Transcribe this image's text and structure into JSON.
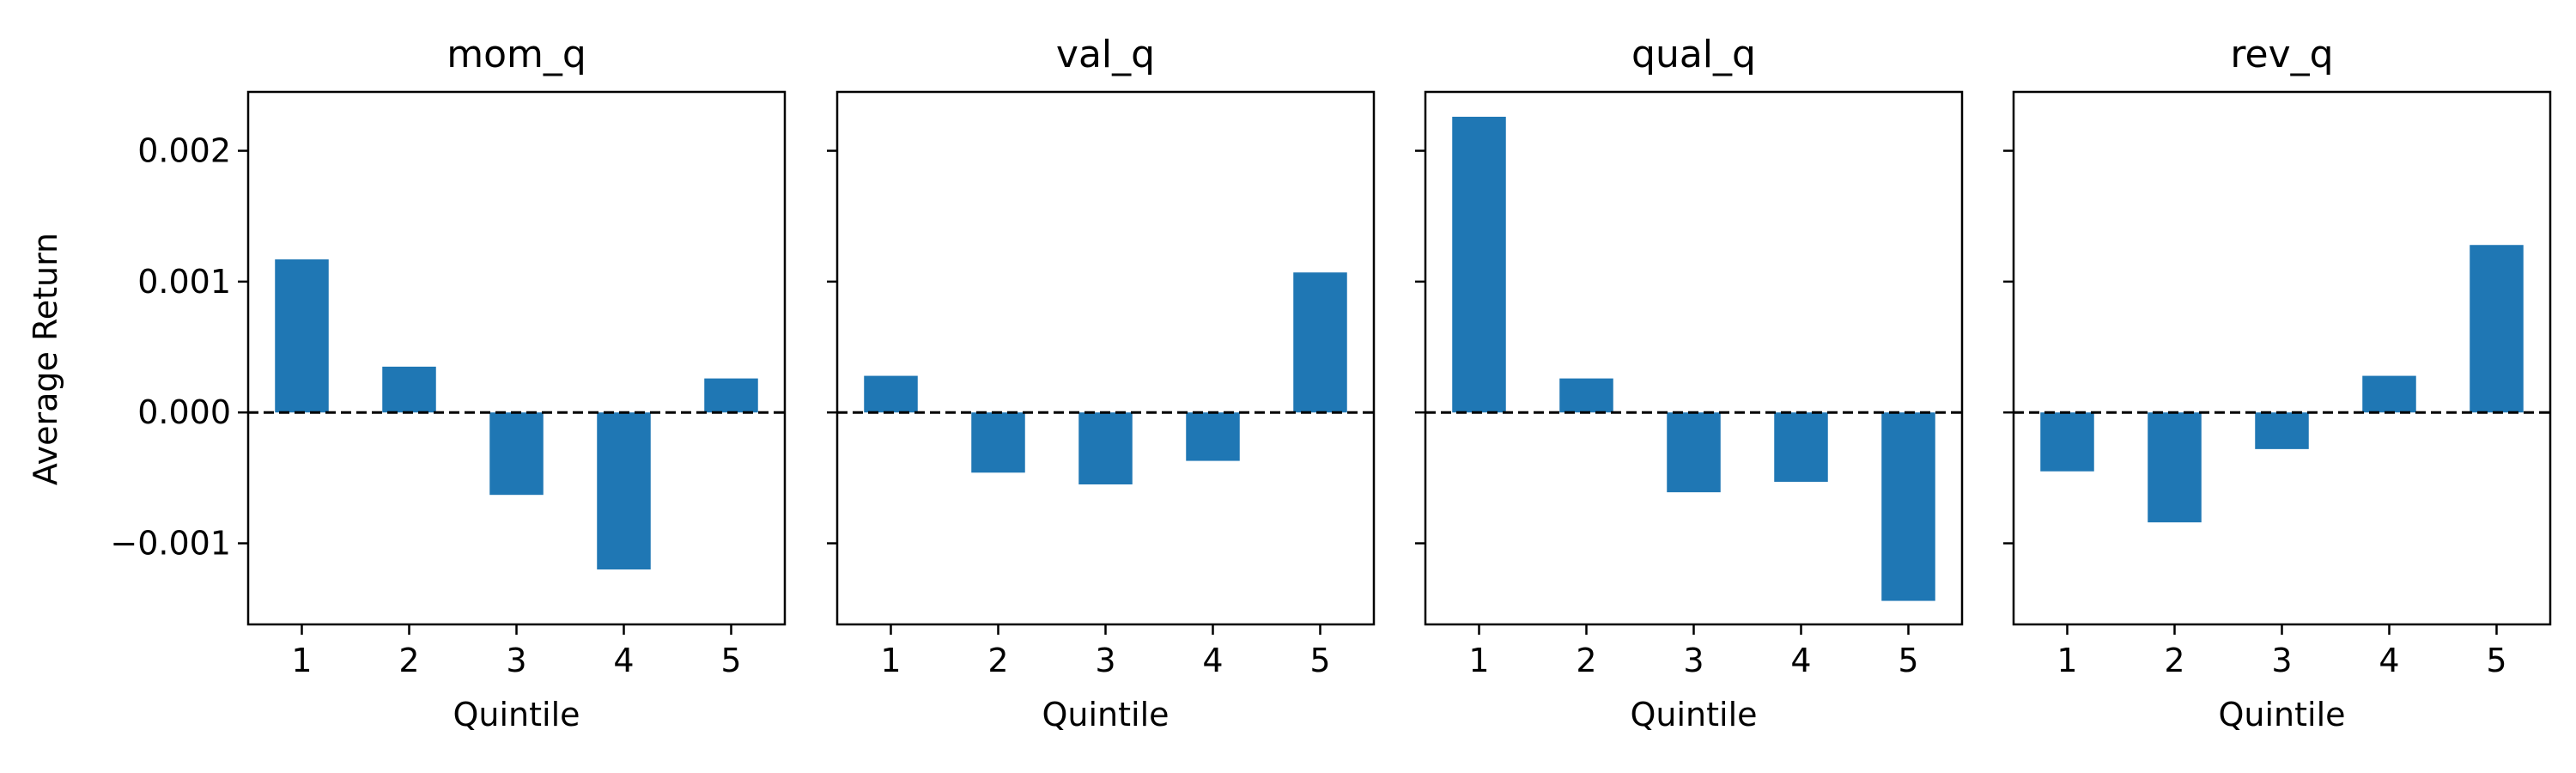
{
  "chart_data": {
    "type": "bar",
    "bar_color": "#1f77b4",
    "ylabel": "Average Return",
    "ylim": [
      -0.00162,
      0.00245
    ],
    "yticks": [
      -0.001,
      0.0,
      0.001,
      0.002
    ],
    "ytick_labels": [
      "−0.001",
      "0.000",
      "0.001",
      "0.002"
    ],
    "zero_line": "dashed",
    "subplots": [
      {
        "title": "mom_q",
        "xlabel": "Quintile",
        "categories": [
          "1",
          "2",
          "3",
          "4",
          "5"
        ],
        "values": [
          0.00117,
          0.00035,
          -0.00063,
          -0.0012,
          0.00026
        ]
      },
      {
        "title": "val_q",
        "xlabel": "Quintile",
        "categories": [
          "1",
          "2",
          "3",
          "4",
          "5"
        ],
        "values": [
          0.00028,
          -0.00046,
          -0.00055,
          -0.00037,
          0.00107
        ]
      },
      {
        "title": "qual_q",
        "xlabel": "Quintile",
        "categories": [
          "1",
          "2",
          "3",
          "4",
          "5"
        ],
        "values": [
          0.00226,
          0.00026,
          -0.00061,
          -0.00053,
          -0.00144
        ]
      },
      {
        "title": "rev_q",
        "xlabel": "Quintile",
        "categories": [
          "1",
          "2",
          "3",
          "4",
          "5"
        ],
        "values": [
          -0.00045,
          -0.00084,
          -0.00028,
          0.00028,
          0.00128
        ]
      }
    ]
  }
}
